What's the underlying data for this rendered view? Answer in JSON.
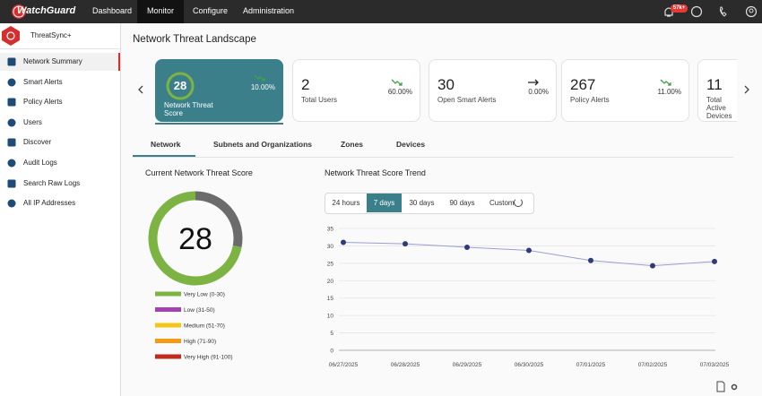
{
  "topbar": {
    "brand": "WatchGuard",
    "nav": [
      "Dashboard",
      "Monitor",
      "Configure",
      "Administration"
    ],
    "active_nav": 1,
    "badge": "57k+"
  },
  "sidebar": {
    "title": "ThreatSync+",
    "items": [
      "Network Summary",
      "Smart Alerts",
      "Policy Alerts",
      "Users",
      "Discover",
      "Audit Logs",
      "Search Raw Logs",
      "All IP Addresses"
    ],
    "active_item": 0
  },
  "page_title": "Network Threat Landscape",
  "cards": [
    {
      "value": 28,
      "label": "Network Threat Score",
      "change": "10.00%",
      "trend": "down"
    },
    {
      "value": 2,
      "label": "Total Users",
      "change": "60.00%",
      "trend": "down"
    },
    {
      "value": 30,
      "label": "Open Smart Alerts",
      "change": "0.00%",
      "trend": "flat"
    },
    {
      "value": 267,
      "label": "Policy Alerts",
      "change": "11.00%",
      "trend": "down"
    },
    {
      "value": 11,
      "label": "Total Active Devices"
    }
  ],
  "tabs": {
    "items": [
      "Network",
      "Subnets and Organizations",
      "Zones",
      "Devices"
    ],
    "active": 0
  },
  "time_range": {
    "options": [
      "24 hours",
      "7 days",
      "30 days",
      "90 days",
      "Custom"
    ],
    "selected": 1
  },
  "chart_data": [
    {
      "type": "gauge",
      "title": "Current Network Threat Score",
      "value": 28,
      "ylim": [
        0,
        100
      ],
      "color": "#6b6b6b",
      "track_color": "#7cb342",
      "legend": [
        {
          "name": "Very Low (0-30)",
          "color": "#7cb342"
        },
        {
          "name": "Low (31-50)",
          "color": "#a142b3"
        },
        {
          "name": "Medium (51-70)",
          "color": "#f5c518"
        },
        {
          "name": "High (71-90)",
          "color": "#f59a12"
        },
        {
          "name": "Very High (91-100)",
          "color": "#c0281c"
        }
      ]
    },
    {
      "type": "line",
      "title": "Network Threat Score Trend",
      "categories": [
        "06/27/2025",
        "06/28/2025",
        "06/29/2025",
        "06/30/2025",
        "07/01/2025",
        "07/02/2025",
        "07/03/2025"
      ],
      "values": [
        31,
        30.6,
        29.6,
        28.7,
        25.8,
        24.3,
        25.5
      ],
      "color": "#2f3a7a",
      "line_color": "#9b9fcf",
      "ylim": [
        0,
        35
      ],
      "yticks": [
        0,
        5,
        10,
        15,
        20,
        25,
        30,
        35
      ],
      "grid": true
    }
  ]
}
